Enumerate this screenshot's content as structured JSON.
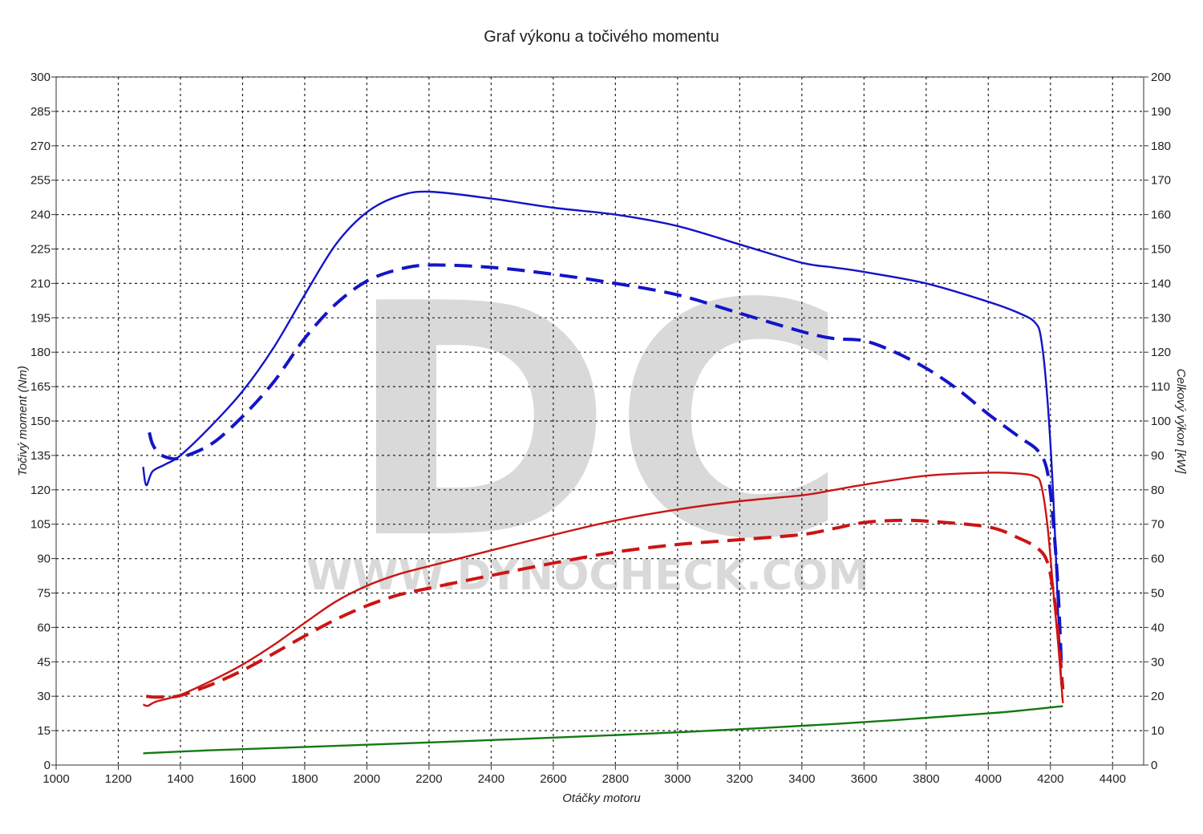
{
  "chart_data": {
    "type": "line",
    "title": "Graf výkonu a točivého momentu",
    "xlabel": "Otáčky motoru",
    "ylabel_left": "Točivý moment (Nm)",
    "ylabel_right": "Celkový výkon [kW]",
    "xlim": [
      1000,
      4500
    ],
    "ylim_left": [
      0,
      300
    ],
    "ylim_right": [
      0,
      200
    ],
    "x_ticks": [
      1000,
      1200,
      1400,
      1600,
      1800,
      2000,
      2200,
      2400,
      2600,
      2800,
      3000,
      3200,
      3400,
      3600,
      3800,
      4000,
      4200,
      4400
    ],
    "y_left_ticks": [
      0,
      15,
      30,
      45,
      60,
      75,
      90,
      105,
      120,
      135,
      150,
      165,
      180,
      195,
      210,
      225,
      240,
      255,
      270,
      285,
      300
    ],
    "y_right_ticks": [
      0,
      10,
      20,
      30,
      40,
      50,
      60,
      70,
      80,
      90,
      100,
      110,
      120,
      130,
      140,
      150,
      160,
      170,
      180,
      190,
      200
    ],
    "grid": true,
    "watermark": {
      "logo": "DC",
      "text": "WWW.DYNOCHECK.COM"
    },
    "series": [
      {
        "key": "torque_tuned",
        "axis": "left",
        "color": "#1414c8",
        "dash": false,
        "points": [
          [
            1280,
            130
          ],
          [
            1290,
            122
          ],
          [
            1310,
            128
          ],
          [
            1350,
            131
          ],
          [
            1400,
            135
          ],
          [
            1500,
            148
          ],
          [
            1600,
            163
          ],
          [
            1700,
            182
          ],
          [
            1800,
            205
          ],
          [
            1900,
            227
          ],
          [
            2000,
            241
          ],
          [
            2100,
            248
          ],
          [
            2200,
            250
          ],
          [
            2400,
            247
          ],
          [
            2600,
            243
          ],
          [
            2800,
            240
          ],
          [
            3000,
            235
          ],
          [
            3200,
            227
          ],
          [
            3400,
            219
          ],
          [
            3500,
            217
          ],
          [
            3600,
            215
          ],
          [
            3800,
            210
          ],
          [
            4000,
            202
          ],
          [
            4100,
            197
          ],
          [
            4150,
            193
          ],
          [
            4170,
            186
          ],
          [
            4190,
            160
          ],
          [
            4210,
            115
          ],
          [
            4225,
            65
          ],
          [
            4235,
            35
          ]
        ]
      },
      {
        "key": "torque_stock",
        "axis": "left",
        "color": "#1414c8",
        "dash": true,
        "points": [
          [
            1300,
            145
          ],
          [
            1310,
            140
          ],
          [
            1330,
            136
          ],
          [
            1360,
            134
          ],
          [
            1400,
            134
          ],
          [
            1500,
            140
          ],
          [
            1600,
            152
          ],
          [
            1700,
            167
          ],
          [
            1800,
            186
          ],
          [
            1900,
            201
          ],
          [
            2000,
            211
          ],
          [
            2100,
            216
          ],
          [
            2200,
            218
          ],
          [
            2400,
            217
          ],
          [
            2600,
            214
          ],
          [
            2800,
            210
          ],
          [
            3000,
            205
          ],
          [
            3200,
            197
          ],
          [
            3400,
            189
          ],
          [
            3500,
            186
          ],
          [
            3600,
            185
          ],
          [
            3700,
            180
          ],
          [
            3800,
            173
          ],
          [
            3900,
            164
          ],
          [
            4000,
            153
          ],
          [
            4100,
            143
          ],
          [
            4160,
            137
          ],
          [
            4190,
            128
          ],
          [
            4210,
            105
          ],
          [
            4225,
            75
          ],
          [
            4235,
            45
          ]
        ]
      },
      {
        "key": "power_tuned",
        "axis": "right",
        "color": "#cc1414",
        "dash": false,
        "points": [
          [
            1280,
            17.6
          ],
          [
            1295,
            17.2
          ],
          [
            1320,
            18.4
          ],
          [
            1400,
            20.4
          ],
          [
            1500,
            24.5
          ],
          [
            1600,
            29.2
          ],
          [
            1700,
            34.9
          ],
          [
            1800,
            41.3
          ],
          [
            1900,
            47.5
          ],
          [
            2000,
            52.1
          ],
          [
            2100,
            55.4
          ],
          [
            2200,
            57.8
          ],
          [
            2400,
            62.4
          ],
          [
            2600,
            66.9
          ],
          [
            2800,
            71.1
          ],
          [
            3000,
            74.3
          ],
          [
            3200,
            76.7
          ],
          [
            3400,
            78.4
          ],
          [
            3500,
            79.9
          ],
          [
            3600,
            81.5
          ],
          [
            3800,
            84.1
          ],
          [
            4000,
            85.0
          ],
          [
            4100,
            84.7
          ],
          [
            4150,
            83.9
          ],
          [
            4170,
            81.5
          ],
          [
            4190,
            70
          ],
          [
            4210,
            50
          ],
          [
            4225,
            35
          ],
          [
            4240,
            18
          ]
        ]
      },
      {
        "key": "power_stock",
        "axis": "right",
        "color": "#cc1414",
        "dash": true,
        "points": [
          [
            1290,
            20
          ],
          [
            1310,
            19.8
          ],
          [
            1350,
            19.8
          ],
          [
            1400,
            20.2
          ],
          [
            1500,
            23.4
          ],
          [
            1600,
            27.5
          ],
          [
            1700,
            32.4
          ],
          [
            1800,
            37.5
          ],
          [
            1900,
            42.3
          ],
          [
            2000,
            46.3
          ],
          [
            2100,
            49.4
          ],
          [
            2200,
            51.4
          ],
          [
            2400,
            55.1
          ],
          [
            2600,
            58.7
          ],
          [
            2800,
            61.9
          ],
          [
            3000,
            64.1
          ],
          [
            3200,
            65.5
          ],
          [
            3400,
            67.0
          ],
          [
            3500,
            68.7
          ],
          [
            3600,
            70.5
          ],
          [
            3700,
            71.1
          ],
          [
            3800,
            70.9
          ],
          [
            4000,
            69.2
          ],
          [
            4100,
            65.9
          ],
          [
            4160,
            62.9
          ],
          [
            4190,
            59
          ],
          [
            4210,
            50
          ],
          [
            4225,
            38
          ],
          [
            4240,
            22
          ]
        ]
      },
      {
        "key": "loss",
        "axis": "right",
        "color": "#137a13",
        "dash": false,
        "points": [
          [
            1280,
            3.4
          ],
          [
            1500,
            4.3
          ],
          [
            2000,
            5.9
          ],
          [
            2500,
            7.6
          ],
          [
            3000,
            9.5
          ],
          [
            3500,
            11.9
          ],
          [
            4000,
            15.0
          ],
          [
            4240,
            17.1
          ]
        ]
      }
    ]
  }
}
